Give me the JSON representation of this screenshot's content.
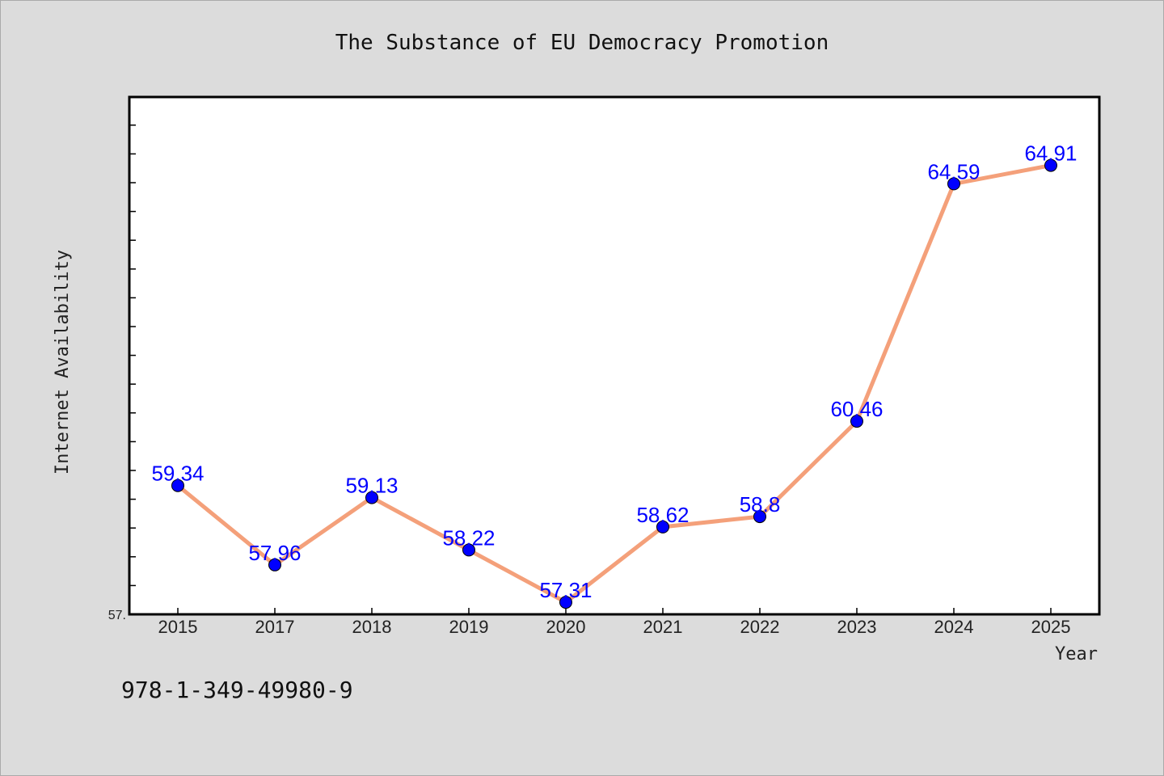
{
  "chart_data": {
    "type": "line",
    "title": "The Substance of EU Democracy Promotion",
    "xlabel": "Year",
    "ylabel": "Internet Availability",
    "categories": [
      "2015",
      "2017",
      "2018",
      "2019",
      "2020",
      "2021",
      "2022",
      "2023",
      "2024",
      "2025"
    ],
    "series": [
      {
        "values": [
          59.34,
          57.96,
          59.13,
          58.22,
          57.31,
          58.62,
          58.8,
          60.46,
          64.59,
          64.91
        ],
        "data_labels": [
          "59.34",
          "57.96",
          "59.13",
          "58.22",
          "57.31",
          "58.62",
          "58.8",
          "60.46",
          "64.59",
          "64.91"
        ],
        "line_color": "#f4a07a",
        "marker_color": "#0000ff"
      }
    ],
    "ylim": [
      57.1,
      66.1
    ],
    "y_tick_labels": [
      "57."
    ],
    "grid": false,
    "legend": "none"
  },
  "footnote": "978-1-349-49980-9",
  "colors": {
    "background": "#dcdcdc",
    "plot_background": "#ffffff",
    "axes": "#000000"
  }
}
